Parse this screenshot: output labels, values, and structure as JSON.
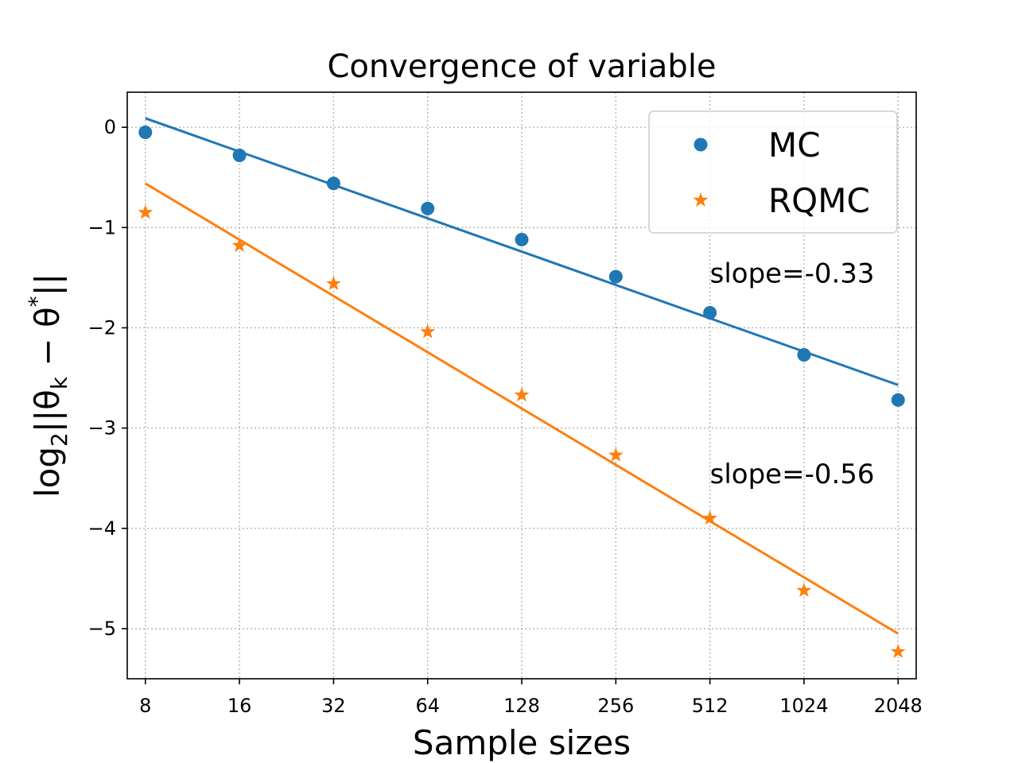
{
  "chart_data": {
    "type": "scatter",
    "title": "Convergence of variable",
    "xlabel": "Sample sizes",
    "ylabel": "log2||θk − θ*||",
    "x": [
      8,
      16,
      32,
      64,
      128,
      256,
      512,
      1024,
      2048
    ],
    "x_tick_labels": [
      "8",
      "16",
      "32",
      "64",
      "128",
      "256",
      "512",
      "1024",
      "2048"
    ],
    "x_scale": "log2",
    "xlim": [
      7,
      2340
    ],
    "ylim": [
      -5.5,
      0.35
    ],
    "y_ticks": [
      0,
      -1,
      -2,
      -3,
      -4,
      -5
    ],
    "y_tick_labels": [
      "0",
      "−1",
      "−2",
      "−3",
      "−4",
      "−5"
    ],
    "grid": true,
    "legend_position": "top-right",
    "series": [
      {
        "name": "MC",
        "marker": "circle",
        "color": "#1f77b4",
        "values": [
          -0.05,
          -0.28,
          -0.56,
          -0.81,
          -1.12,
          -1.49,
          -1.85,
          -2.27,
          -2.72
        ],
        "fit_line": [
          0.09,
          -2.57
        ],
        "annotation": "slope=-0.33"
      },
      {
        "name": "RQMC",
        "marker": "star",
        "color": "#ff7f0e",
        "values": [
          -0.85,
          -1.18,
          -1.56,
          -2.04,
          -2.67,
          -3.27,
          -3.9,
          -4.62,
          -5.23
        ],
        "fit_line": [
          -0.56,
          -5.05
        ],
        "annotation": "slope=-0.56"
      }
    ]
  }
}
